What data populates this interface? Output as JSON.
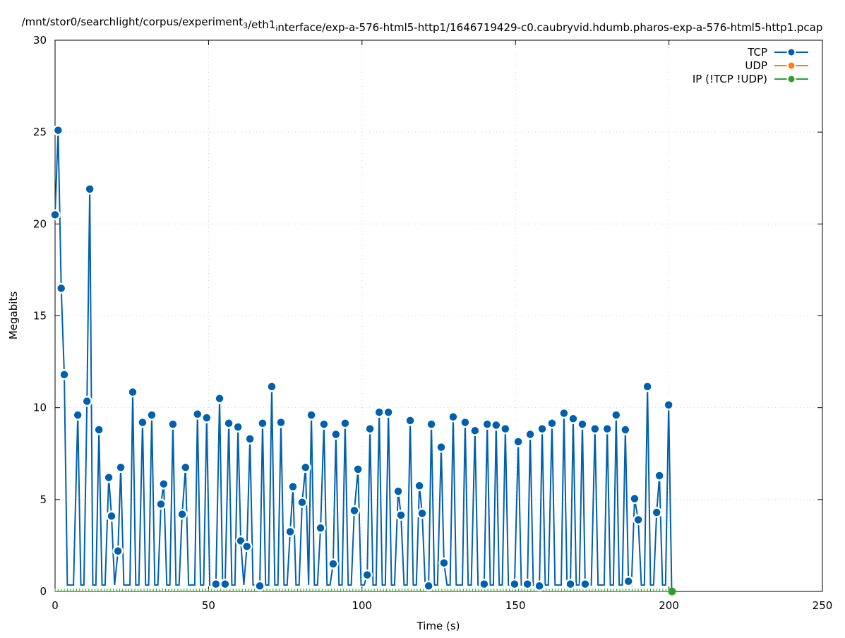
{
  "chart_data": {
    "type": "line",
    "title": "/mnt/stor0/searchlight/corpus/experiment_3/eth1_interface/exp-a-576-html5-http1/1646719429-c0.caubryvid.hdumb.pharos-exp-a-576-html5-http1.pcap",
    "xlabel": "Time (s)",
    "ylabel": "Megabits",
    "xlim": [
      0,
      250
    ],
    "ylim": [
      0,
      30
    ],
    "xticks": [
      "0",
      "50",
      "100",
      "150",
      "200",
      "250"
    ],
    "yticks": [
      "0",
      "5",
      "10",
      "15",
      "20",
      "25",
      "30"
    ],
    "grid": true,
    "legend_position": "top-right",
    "low_value_between_peaks": 0.35,
    "series": [
      {
        "name": "TCP",
        "color": "#0060ad",
        "points": [
          [
            0,
            20.5
          ],
          [
            1,
            25.1
          ],
          [
            2,
            16.5
          ],
          [
            3,
            11.8
          ],
          [
            7.4,
            9.6
          ],
          [
            10.4,
            10.35
          ],
          [
            11.3,
            21.9
          ],
          [
            14.3,
            8.8
          ],
          [
            17.5,
            6.2
          ],
          [
            18.4,
            4.1
          ],
          [
            20.5,
            2.2
          ],
          [
            21.4,
            6.75
          ],
          [
            25.3,
            10.85
          ],
          [
            28.5,
            9.2
          ],
          [
            31.5,
            9.6
          ],
          [
            34.5,
            4.75
          ],
          [
            35.4,
            5.85
          ],
          [
            38.4,
            9.1
          ],
          [
            41.4,
            4.2
          ],
          [
            42.5,
            6.75
          ],
          [
            46.4,
            9.65
          ],
          [
            49.4,
            9.45
          ],
          [
            52.4,
            0.4
          ],
          [
            53.6,
            10.5
          ],
          [
            55.4,
            0.4
          ],
          [
            56.6,
            9.15
          ],
          [
            59.6,
            8.95
          ],
          [
            60.5,
            2.75
          ],
          [
            62.5,
            2.45
          ],
          [
            63.5,
            8.3
          ],
          [
            66.7,
            0.3
          ],
          [
            67.6,
            9.15
          ],
          [
            70.6,
            11.15
          ],
          [
            73.6,
            9.2
          ],
          [
            76.6,
            3.25
          ],
          [
            77.5,
            5.7
          ],
          [
            80.5,
            4.85
          ],
          [
            81.6,
            6.75
          ],
          [
            83.5,
            9.6
          ],
          [
            86.5,
            3.45
          ],
          [
            87.6,
            9.1
          ],
          [
            90.6,
            1.5
          ],
          [
            91.5,
            8.55
          ],
          [
            94.5,
            9.15
          ],
          [
            97.5,
            4.4
          ],
          [
            98.7,
            6.65
          ],
          [
            101.7,
            0.9
          ],
          [
            102.6,
            8.85
          ],
          [
            105.6,
            9.75
          ],
          [
            108.6,
            9.75
          ],
          [
            111.8,
            5.45
          ],
          [
            112.7,
            4.15
          ],
          [
            115.7,
            9.3
          ],
          [
            118.7,
            5.75
          ],
          [
            119.6,
            4.25
          ],
          [
            121.7,
            0.3
          ],
          [
            122.6,
            9.1
          ],
          [
            125.8,
            7.85
          ],
          [
            126.7,
            1.55
          ],
          [
            129.7,
            9.5
          ],
          [
            133.6,
            9.2
          ],
          [
            136.8,
            8.75
          ],
          [
            139.8,
            0.4
          ],
          [
            140.8,
            9.1
          ],
          [
            143.7,
            9.05
          ],
          [
            146.7,
            8.85
          ],
          [
            149.7,
            0.4
          ],
          [
            150.9,
            8.15
          ],
          [
            153.9,
            0.4
          ],
          [
            154.8,
            8.55
          ],
          [
            157.8,
            0.3
          ],
          [
            158.7,
            8.85
          ],
          [
            161.9,
            9.15
          ],
          [
            165.8,
            9.7
          ],
          [
            167.9,
            0.4
          ],
          [
            168.8,
            9.4
          ],
          [
            171.8,
            9.1
          ],
          [
            172.7,
            0.4
          ],
          [
            175.9,
            8.85
          ],
          [
            179.9,
            8.85
          ],
          [
            182.8,
            9.6
          ],
          [
            185.8,
            8.8
          ],
          [
            186.8,
            0.55
          ],
          [
            188.8,
            5.05
          ],
          [
            190,
            3.9
          ],
          [
            193,
            11.15
          ],
          [
            196,
            4.3
          ],
          [
            196.9,
            6.3
          ],
          [
            199.9,
            10.15
          ]
        ]
      },
      {
        "name": "UDP",
        "color": "#ff7f0e",
        "points": []
      },
      {
        "name": "IP (!TCP  !UDP)",
        "color": "#2ca02c",
        "points": [
          [
            0,
            0
          ],
          [
            201,
            0
          ]
        ]
      }
    ]
  }
}
